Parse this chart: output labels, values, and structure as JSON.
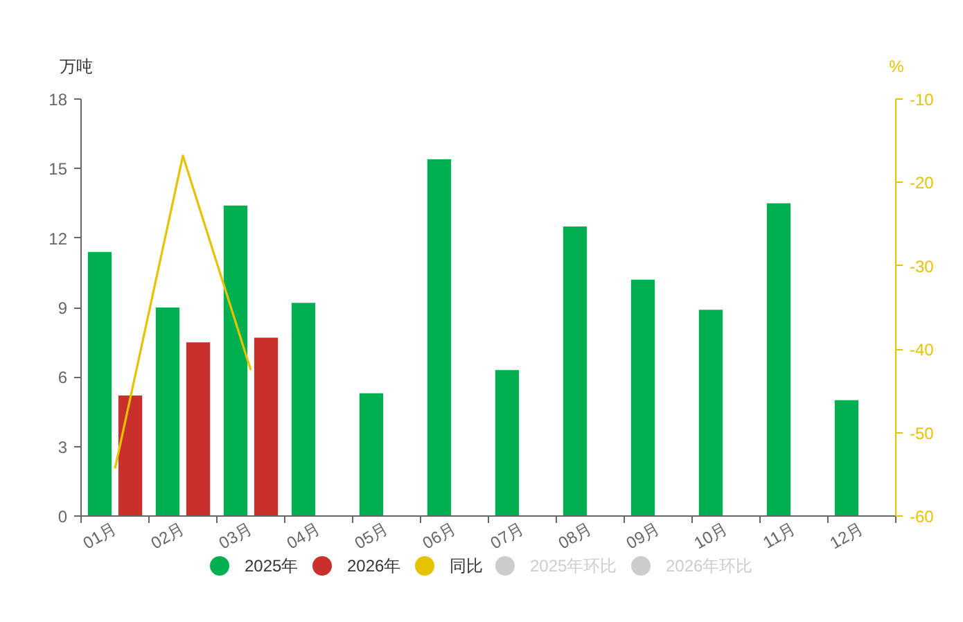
{
  "chart_data": {
    "type": "bar",
    "ylabel": "万吨",
    "y2label": "%",
    "categories": [
      "01月",
      "02月",
      "03月",
      "04月",
      "05月",
      "06月",
      "07月",
      "08月",
      "09月",
      "10月",
      "11月",
      "12月"
    ],
    "series": [
      {
        "name": "2025年",
        "color": "#00b050",
        "values": [
          11.4,
          9.0,
          13.4,
          9.2,
          5.3,
          15.4,
          6.3,
          12.5,
          10.2,
          8.9,
          13.5,
          5.0
        ]
      },
      {
        "name": "2026年",
        "color": "#c9302c",
        "values": [
          5.2,
          7.5,
          7.7,
          null,
          null,
          null,
          null,
          null,
          null,
          null,
          null,
          null
        ]
      },
      {
        "name": "同比",
        "type": "line",
        "axis": "y2",
        "color": "#e6c200",
        "values": [
          -54.3,
          -16.8,
          -42.5,
          null,
          null,
          null,
          null,
          null,
          null,
          null,
          null,
          null
        ]
      },
      {
        "name": "2025年环比",
        "type": "line",
        "axis": "y2",
        "color": "#cccccc",
        "values": [
          null,
          null,
          null,
          null,
          null,
          null,
          null,
          null,
          null,
          null,
          null,
          null
        ]
      },
      {
        "name": "2026年环比",
        "type": "line",
        "axis": "y2",
        "color": "#cccccc",
        "values": [
          null,
          null,
          null,
          null,
          null,
          null,
          null,
          null,
          null,
          null,
          null,
          null
        ]
      }
    ],
    "ylim": [
      0,
      18
    ],
    "yticks": [
      0,
      3,
      6,
      9,
      12,
      15,
      18
    ],
    "y2lim": [
      -60,
      -10
    ],
    "y2ticks": [
      -60,
      -50,
      -40,
      -30,
      -20,
      -10
    ],
    "legend": "bottom"
  }
}
